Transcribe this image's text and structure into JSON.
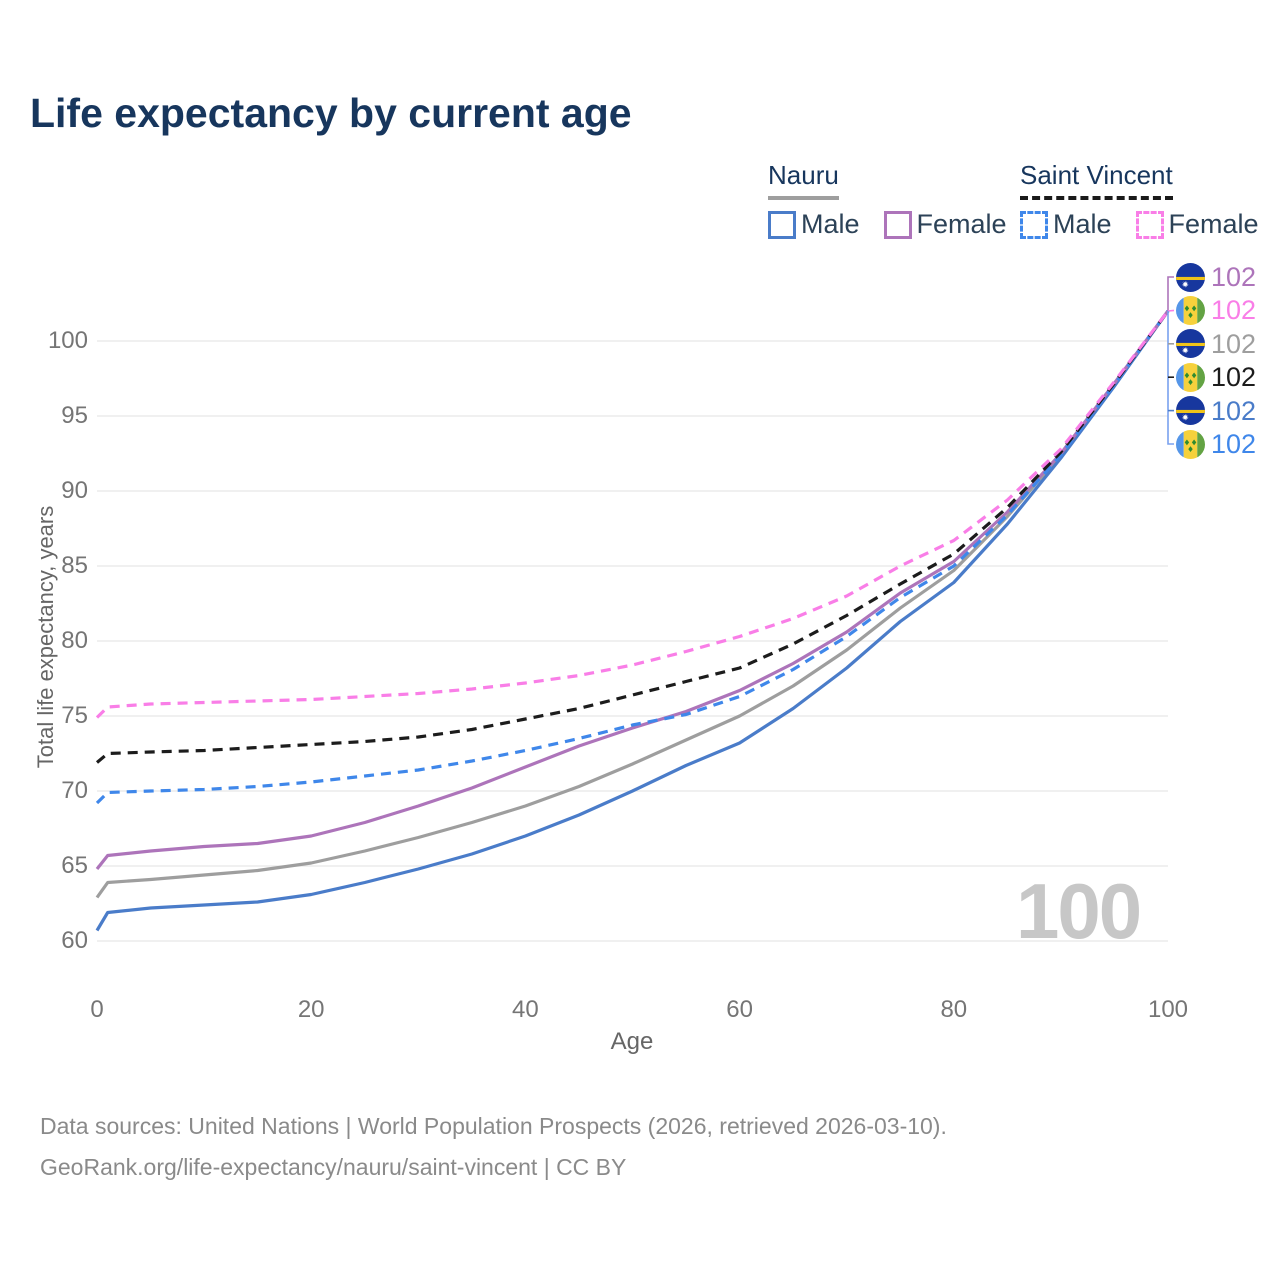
{
  "header": {
    "title": "Life expectancy by current age"
  },
  "legend": {
    "groups": [
      {
        "label": "Nauru",
        "line_style": "solid",
        "underline_color": "#9e9e9e",
        "items": [
          {
            "label": "Male",
            "color": "#4a7cc9"
          },
          {
            "label": "Female",
            "color": "#ad74ba"
          }
        ]
      },
      {
        "label": "Saint Vincent",
        "line_style": "dashed",
        "underline_color": "#1a1a1a",
        "items": [
          {
            "label": "Male",
            "color": "#3f87ea"
          },
          {
            "label": "Female",
            "color": "#f97ee7"
          }
        ]
      }
    ]
  },
  "chart_data": {
    "type": "line",
    "title": "Life expectancy by current age",
    "xlabel": "Age",
    "ylabel": "Total life expectancy, years",
    "xlim": [
      0,
      100
    ],
    "ylim": [
      60,
      102
    ],
    "x_ticks": [
      0,
      20,
      40,
      60,
      80,
      100
    ],
    "y_ticks": [
      60,
      65,
      70,
      75,
      80,
      85,
      90,
      95,
      100
    ],
    "grid": true,
    "legend_position": "top-right",
    "watermark_current_age": "100",
    "x": [
      0,
      1,
      5,
      10,
      15,
      20,
      25,
      30,
      35,
      40,
      45,
      50,
      55,
      60,
      65,
      70,
      75,
      80,
      85,
      90,
      95,
      100
    ],
    "series": [
      {
        "id": "nauru-total",
        "name": "Nauru — Both sexes",
        "country": "Nauru",
        "sex": "Total",
        "color": "#9e9e9e",
        "dashed": false,
        "values": [
          62.9,
          63.9,
          64.1,
          64.4,
          64.7,
          65.2,
          66.0,
          66.9,
          67.9,
          69.0,
          70.3,
          71.8,
          73.4,
          75.0,
          77.0,
          79.4,
          82.2,
          84.7,
          88.3,
          92.4,
          97.1,
          102
        ]
      },
      {
        "id": "nauru-male",
        "name": "Nauru — Male",
        "country": "Nauru",
        "sex": "Male",
        "color": "#4a7cc9",
        "dashed": false,
        "values": [
          60.7,
          61.9,
          62.2,
          62.4,
          62.6,
          63.1,
          63.9,
          64.8,
          65.8,
          67.0,
          68.4,
          70.0,
          71.7,
          73.2,
          75.5,
          78.2,
          81.3,
          83.9,
          87.8,
          92.2,
          97.0,
          102
        ]
      },
      {
        "id": "nauru-female",
        "name": "Nauru — Female",
        "country": "Nauru",
        "sex": "Female",
        "color": "#ad74ba",
        "dashed": false,
        "values": [
          64.8,
          65.7,
          66.0,
          66.3,
          66.5,
          67.0,
          67.9,
          69.0,
          70.2,
          71.6,
          73.0,
          74.2,
          75.3,
          76.7,
          78.5,
          80.6,
          83.2,
          85.3,
          88.6,
          92.5,
          97.2,
          102
        ]
      },
      {
        "id": "sv-male",
        "name": "Saint Vincent — Male",
        "country": "Saint Vincent",
        "sex": "Male",
        "color": "#3f87ea",
        "dashed": true,
        "values": [
          69.2,
          69.9,
          70.0,
          70.1,
          70.3,
          70.6,
          71.0,
          71.4,
          72.0,
          72.7,
          73.5,
          74.4,
          75.1,
          76.3,
          78.1,
          80.3,
          82.9,
          85.0,
          88.4,
          92.4,
          97.1,
          102
        ]
      },
      {
        "id": "sv-total",
        "name": "Saint Vincent — Both sexes",
        "country": "Saint Vincent",
        "sex": "Total",
        "color": "#1c1c1c",
        "dashed": true,
        "values": [
          71.9,
          72.5,
          72.6,
          72.7,
          72.9,
          73.1,
          73.3,
          73.6,
          74.1,
          74.8,
          75.5,
          76.4,
          77.3,
          78.2,
          79.8,
          81.7,
          83.8,
          85.8,
          88.9,
          92.6,
          97.2,
          102
        ]
      },
      {
        "id": "sv-female",
        "name": "Saint Vincent — Female",
        "country": "Saint Vincent",
        "sex": "Female",
        "color": "#f97ee7",
        "dashed": true,
        "values": [
          74.9,
          75.6,
          75.8,
          75.9,
          76.0,
          76.1,
          76.3,
          76.5,
          76.8,
          77.2,
          77.7,
          78.4,
          79.3,
          80.3,
          81.5,
          83.0,
          85.0,
          86.7,
          89.4,
          92.8,
          97.3,
          102
        ]
      }
    ],
    "end_labels": [
      {
        "flag": "nauru-flag",
        "value": "102",
        "color": "#ad74ba"
      },
      {
        "flag": "saint-vincent-flag",
        "value": "102",
        "color": "#f97ee7"
      },
      {
        "flag": "nauru-flag",
        "value": "102",
        "color": "#9e9e9e"
      },
      {
        "flag": "saint-vincent-flag",
        "value": "102",
        "color": "#1c1c1c"
      },
      {
        "flag": "nauru-flag",
        "value": "102",
        "color": "#4a7cc9"
      },
      {
        "flag": "saint-vincent-flag",
        "value": "102",
        "color": "#3f87ea"
      }
    ]
  },
  "footer": {
    "line1": "Data sources: United Nations | World Population Prospects (2026, retrieved 2026-03-10).",
    "line2": "GeoRank.org/life-expectancy/nauru/saint-vincent | CC BY"
  }
}
